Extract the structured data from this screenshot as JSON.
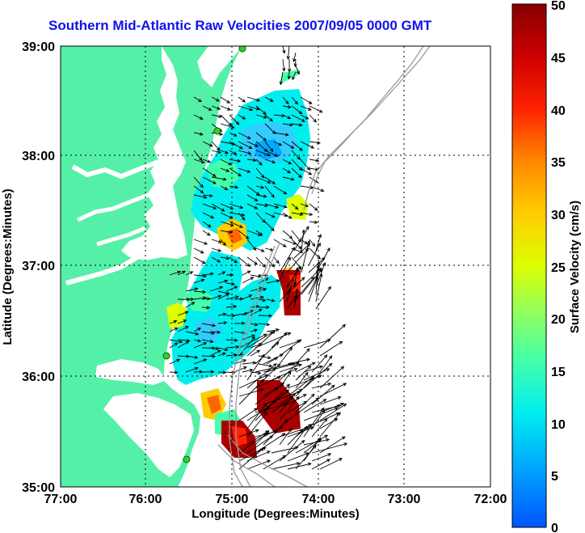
{
  "title": "Southern Mid-Atlantic Raw Velocities 2007/09/05 0000 GMT",
  "xaxis": {
    "label": "Longitude (Degrees:Minutes)",
    "ticks": [
      "77:00",
      "76:00",
      "75:00",
      "74:00",
      "73:00",
      "72:00"
    ]
  },
  "yaxis": {
    "label": "Latitude (Degrees:Minutes)",
    "ticks": [
      "39:00",
      "38:00",
      "37:00",
      "36:00",
      "35:00"
    ]
  },
  "colorbar": {
    "label": "Surface Velocity (cm/s)",
    "ticks": [
      "50",
      "45",
      "40",
      "35",
      "30",
      "25",
      "20",
      "15",
      "10",
      "5",
      "0"
    ],
    "range": [
      0,
      50
    ]
  },
  "colors": {
    "land": "#55f0a8",
    "water": "#ffffff",
    "title": "#1111ee",
    "grid": "#000000",
    "bathymetry": "#999999",
    "station": "#33cc33"
  }
}
